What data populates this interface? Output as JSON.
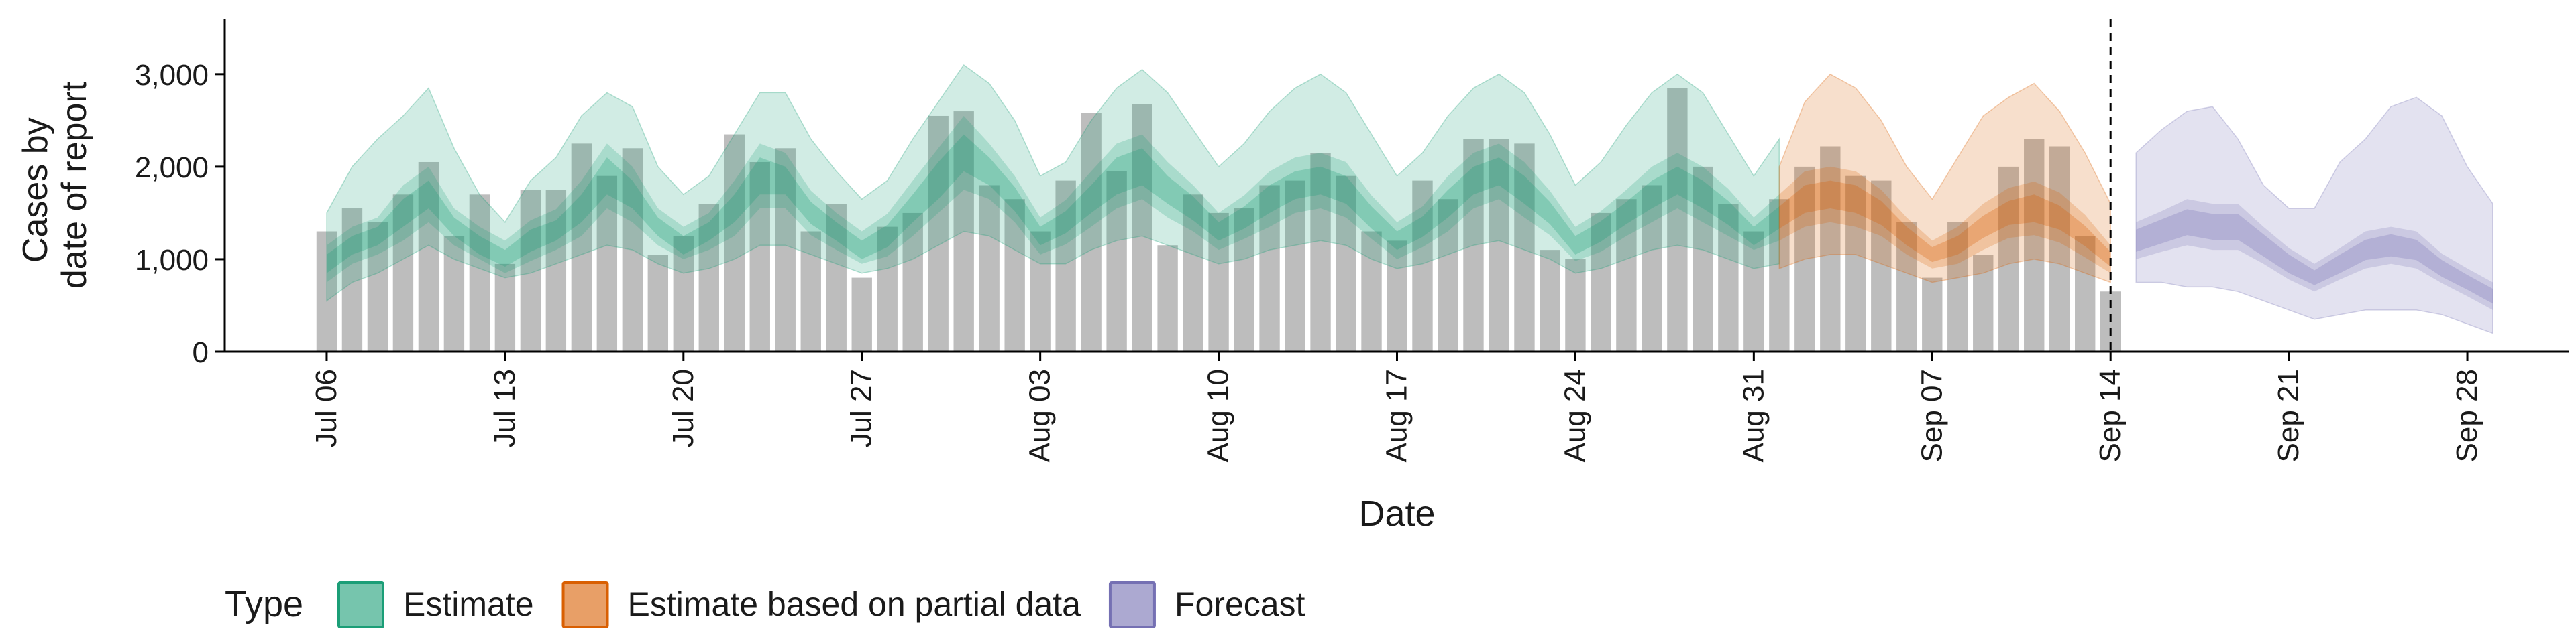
{
  "chart_data": {
    "type": "bar",
    "xlabel": "Date",
    "ylabel_lines": [
      "Cases by",
      "date of report"
    ],
    "ylim": [
      0,
      3600
    ],
    "y_ticks": [
      0,
      1000,
      2000,
      3000
    ],
    "y_tick_labels": [
      "0",
      "1,000",
      "2,000",
      "3,000"
    ],
    "x_tick_labels": [
      "Jul 06",
      "Jul 13",
      "Jul 20",
      "Jul 27",
      "Aug 03",
      "Aug 10",
      "Aug 17",
      "Aug 24",
      "Aug 31",
      "Sep 07",
      "Sep 14",
      "Sep 21",
      "Sep 28"
    ],
    "x_start_label": "Jul 06",
    "x_range_days": [
      -4,
      88
    ],
    "cutoff_day": 70,
    "grid": false,
    "legend_position": "bottom",
    "legend": {
      "title": "Type",
      "entries": [
        {
          "label": "Estimate",
          "color": "#1b9e77"
        },
        {
          "label": "Estimate based on partial data",
          "color": "#d95f02"
        },
        {
          "label": "Forecast",
          "color": "#7570b3"
        }
      ]
    },
    "reported_cases": [
      1300,
      1550,
      1400,
      1700,
      2050,
      1250,
      1700,
      950,
      1750,
      1750,
      2250,
      1900,
      2200,
      1050,
      1250,
      1600,
      2350,
      2050,
      2200,
      1300,
      1600,
      800,
      1350,
      1500,
      2550,
      2600,
      1800,
      1650,
      1300,
      1850,
      2580,
      1950,
      2680,
      1150,
      1700,
      1500,
      1550,
      1800,
      1850,
      2150,
      1900,
      1300,
      1200,
      1850,
      1650,
      2300,
      2300,
      2250,
      1100,
      1000,
      1500,
      1650,
      1800,
      2850,
      2000,
      1600,
      1300,
      1650,
      2000,
      2220,
      1900,
      1850,
      1400,
      800,
      1400,
      1050,
      2000,
      2300,
      2220,
      1250,
      650
    ],
    "series": [
      {
        "name": "Estimate",
        "color": "#1b9e77",
        "start_day": 0,
        "median": [
          950,
          1150,
          1250,
          1500,
          1700,
          1350,
          1150,
          1000,
          1200,
          1300,
          1550,
          1900,
          1700,
          1350,
          1150,
          1300,
          1550,
          1900,
          1850,
          1500,
          1300,
          1100,
          1250,
          1550,
          1850,
          2150,
          1950,
          1650,
          1250,
          1400,
          1650,
          1900,
          2000,
          1750,
          1550,
          1300,
          1450,
          1650,
          1800,
          1850,
          1750,
          1450,
          1200,
          1350,
          1600,
          1850,
          1950,
          1750,
          1500,
          1150,
          1300,
          1500,
          1700,
          1850,
          1700,
          1500,
          1250,
          1450
        ],
        "q25": [
          850,
          1050,
          1150,
          1350,
          1550,
          1250,
          1050,
          920,
          1080,
          1200,
          1400,
          1700,
          1550,
          1250,
          1050,
          1200,
          1400,
          1700,
          1700,
          1380,
          1200,
          1000,
          1130,
          1400,
          1650,
          1950,
          1800,
          1520,
          1150,
          1280,
          1500,
          1700,
          1800,
          1600,
          1420,
          1200,
          1330,
          1500,
          1650,
          1700,
          1600,
          1330,
          1100,
          1240,
          1450,
          1700,
          1800,
          1600,
          1380,
          1050,
          1190,
          1380,
          1550,
          1700,
          1550,
          1370,
          1150,
          1330
        ],
        "q75": [
          1050,
          1250,
          1350,
          1650,
          1850,
          1450,
          1250,
          1100,
          1320,
          1420,
          1700,
          2100,
          1850,
          1450,
          1250,
          1400,
          1700,
          2100,
          2000,
          1620,
          1400,
          1200,
          1370,
          1700,
          2050,
          2350,
          2100,
          1780,
          1350,
          1520,
          1800,
          2100,
          2200,
          1900,
          1680,
          1400,
          1570,
          1800,
          1950,
          2000,
          1900,
          1570,
          1300,
          1460,
          1750,
          2000,
          2100,
          1900,
          1620,
          1250,
          1410,
          1620,
          1850,
          2000,
          1850,
          1630,
          1350,
          1570
        ],
        "q05": [
          750,
          950,
          1050,
          1200,
          1400,
          1150,
          1000,
          850,
          980,
          1100,
          1250,
          1550,
          1400,
          1150,
          1000,
          1100,
          1250,
          1550,
          1550,
          1260,
          1100,
          950,
          1030,
          1250,
          1500,
          1750,
          1650,
          1400,
          1050,
          1160,
          1350,
          1550,
          1650,
          1450,
          1300,
          1100,
          1220,
          1350,
          1500,
          1550,
          1450,
          1220,
          1000,
          1130,
          1300,
          1550,
          1650,
          1450,
          1260,
          980,
          1080,
          1250,
          1400,
          1550,
          1400,
          1250,
          1100,
          1200
        ],
        "q95": [
          1150,
          1350,
          1450,
          1800,
          2000,
          1550,
          1350,
          1200,
          1420,
          1540,
          1850,
          2250,
          2000,
          1550,
          1350,
          1500,
          1850,
          2250,
          2150,
          1740,
          1500,
          1300,
          1490,
          1850,
          2200,
          2550,
          2250,
          1900,
          1450,
          1640,
          1950,
          2250,
          2350,
          2050,
          1800,
          1500,
          1690,
          1950,
          2100,
          2150,
          2050,
          1690,
          1400,
          1570,
          1900,
          2150,
          2250,
          2050,
          1740,
          1350,
          1520,
          1750,
          2000,
          2150,
          2000,
          1760,
          1450,
          1700
        ],
        "q025": [
          550,
          750,
          850,
          1000,
          1150,
          1000,
          900,
          800,
          850,
          950,
          1050,
          1150,
          1100,
          950,
          850,
          900,
          1000,
          1150,
          1150,
          1050,
          950,
          850,
          900,
          1000,
          1150,
          1300,
          1250,
          1100,
          950,
          950,
          1100,
          1200,
          1250,
          1150,
          1050,
          950,
          1000,
          1100,
          1150,
          1200,
          1150,
          1000,
          900,
          950,
          1050,
          1150,
          1200,
          1100,
          1000,
          850,
          900,
          1000,
          1100,
          1150,
          1100,
          1000,
          900,
          950
        ],
        "q975": [
          1500,
          2000,
          2300,
          2550,
          2850,
          2200,
          1700,
          1400,
          1850,
          2100,
          2550,
          2800,
          2650,
          2000,
          1700,
          1900,
          2350,
          2800,
          2800,
          2300,
          1950,
          1650,
          1850,
          2300,
          2700,
          3100,
          2900,
          2500,
          1900,
          2050,
          2500,
          2850,
          3050,
          2800,
          2400,
          2000,
          2250,
          2600,
          2850,
          3000,
          2800,
          2350,
          1900,
          2150,
          2550,
          2850,
          3000,
          2800,
          2350,
          1800,
          2050,
          2450,
          2800,
          3000,
          2800,
          2350,
          1900,
          2300
        ]
      },
      {
        "name": "Estimate based on partial data",
        "color": "#d95f02",
        "start_day": 57,
        "median": [
          1450,
          1650,
          1700,
          1650,
          1500,
          1250,
          1050,
          1150,
          1350,
          1500,
          1550,
          1450,
          1250,
          1000
        ],
        "q25": [
          1330,
          1500,
          1550,
          1500,
          1370,
          1150,
          970,
          1050,
          1230,
          1370,
          1400,
          1320,
          1140,
          920
        ],
        "q75": [
          1570,
          1800,
          1850,
          1800,
          1630,
          1350,
          1130,
          1250,
          1470,
          1630,
          1700,
          1580,
          1360,
          1080
        ],
        "q05": [
          1200,
          1350,
          1400,
          1350,
          1250,
          1050,
          900,
          950,
          1100,
          1230,
          1260,
          1180,
          1020,
          850
        ],
        "q95": [
          1700,
          1950,
          2000,
          1950,
          1750,
          1450,
          1200,
          1350,
          1600,
          1770,
          1840,
          1720,
          1480,
          1150
        ],
        "q025": [
          900,
          1000,
          1050,
          1050,
          950,
          850,
          750,
          800,
          850,
          950,
          1000,
          950,
          850,
          750
        ],
        "q975": [
          2000,
          2700,
          3000,
          2850,
          2500,
          2000,
          1650,
          2100,
          2550,
          2750,
          2900,
          2600,
          2150,
          1600
        ]
      },
      {
        "name": "Forecast",
        "color": "#7570b3",
        "start_day": 71,
        "median": [
          1200,
          1300,
          1400,
          1350,
          1350,
          1150,
          950,
          800,
          950,
          1100,
          1150,
          1100,
          900,
          750,
          600
        ],
        "q25": [
          1080,
          1170,
          1260,
          1210,
          1210,
          1030,
          850,
          720,
          850,
          990,
          1030,
          990,
          810,
          670,
          520
        ],
        "q75": [
          1320,
          1430,
          1540,
          1490,
          1490,
          1270,
          1050,
          880,
          1050,
          1210,
          1270,
          1210,
          990,
          830,
          680
        ],
        "q05": [
          1000,
          1080,
          1150,
          1100,
          1100,
          950,
          780,
          650,
          780,
          900,
          950,
          900,
          740,
          600,
          450
        ],
        "q95": [
          1400,
          1520,
          1650,
          1600,
          1600,
          1350,
          1120,
          950,
          1120,
          1300,
          1350,
          1300,
          1060,
          900,
          750
        ],
        "q025": [
          750,
          750,
          700,
          700,
          650,
          550,
          450,
          350,
          400,
          450,
          450,
          450,
          400,
          300,
          200
        ],
        "q975": [
          2150,
          2400,
          2600,
          2650,
          2300,
          1800,
          1550,
          1550,
          2050,
          2300,
          2650,
          2750,
          2550,
          2000,
          1600
        ]
      }
    ]
  }
}
